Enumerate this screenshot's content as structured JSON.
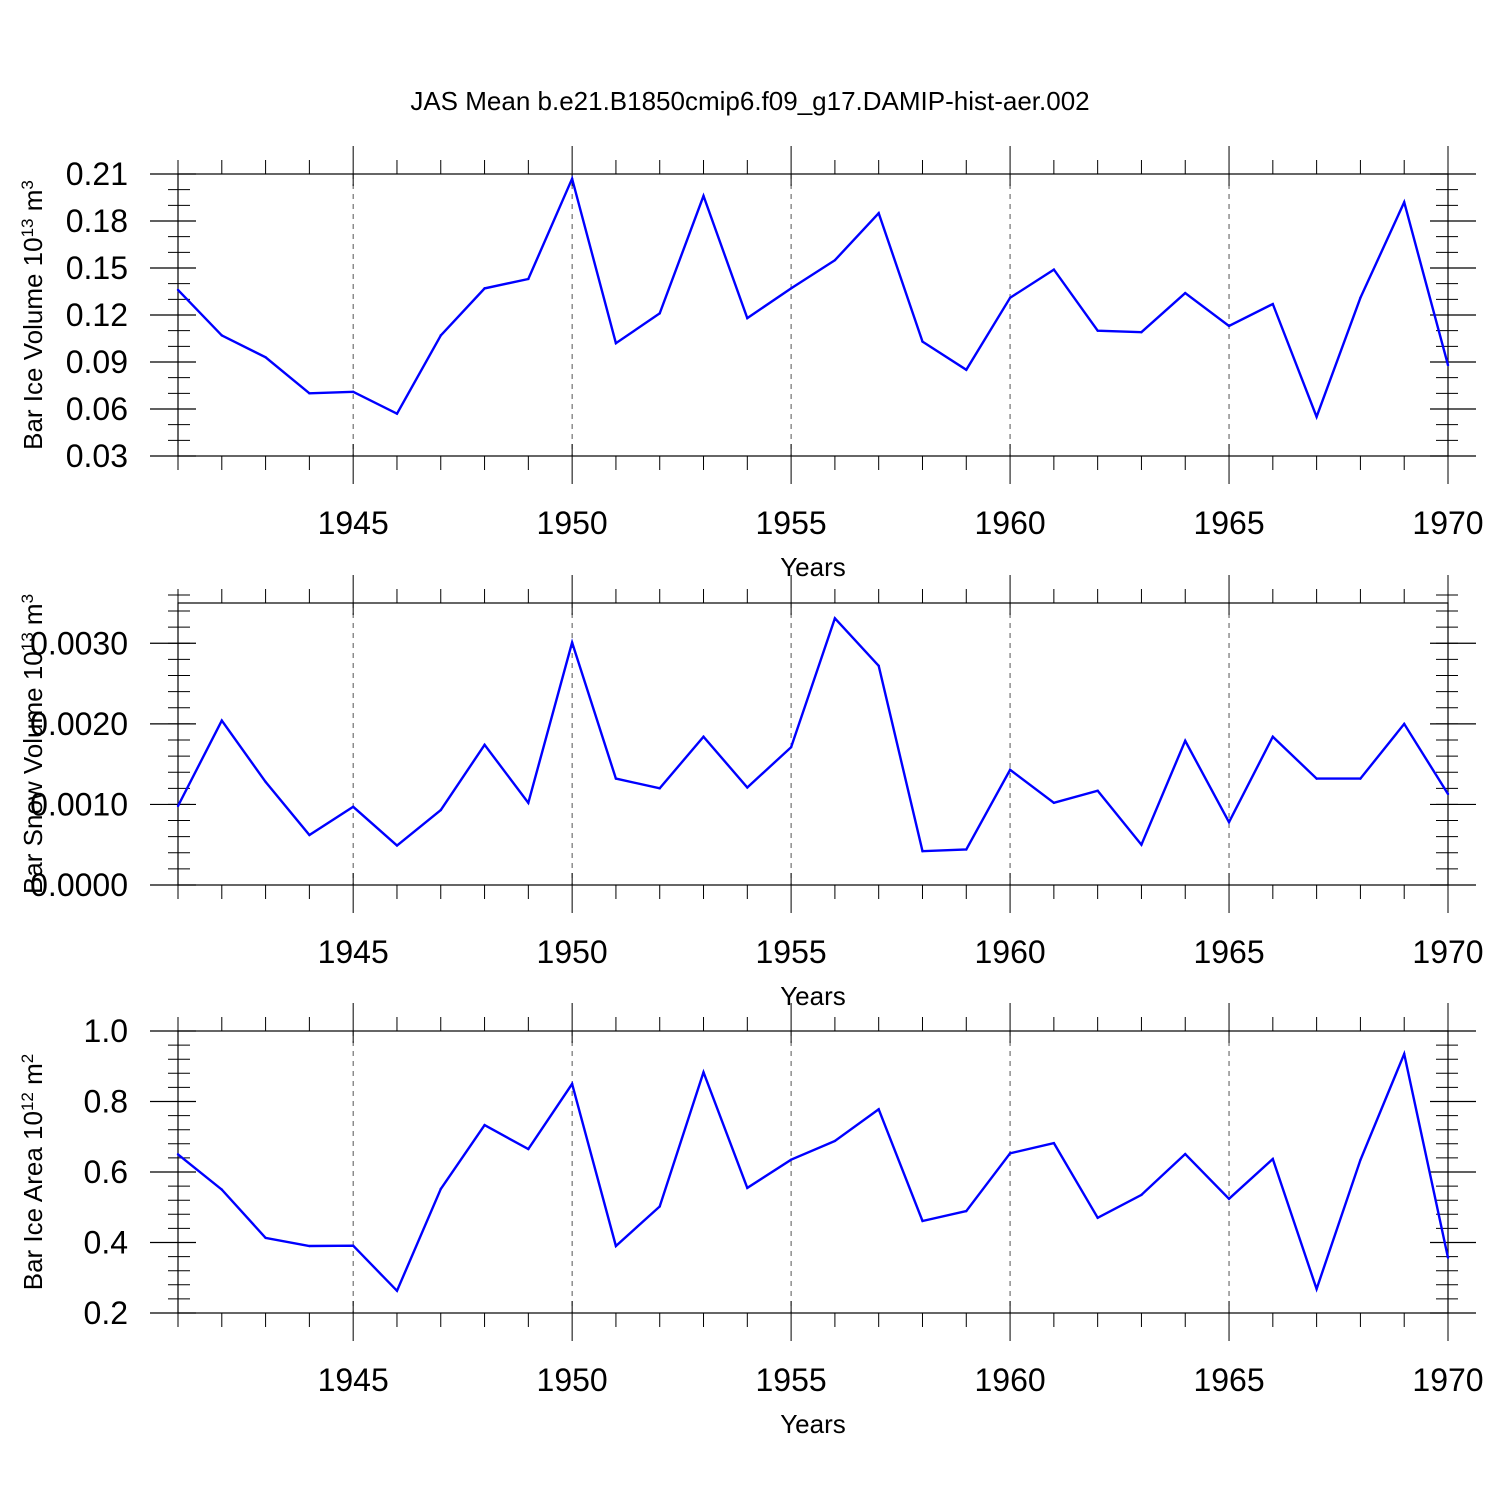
{
  "title": "JAS Mean b.e21.B1850cmip6.f09_g17.DAMIP-hist-aer.002",
  "colors": {
    "line": "#0000ff",
    "axis": "#000000",
    "grid": "#555555"
  },
  "chart_data": [
    {
      "type": "line",
      "ylabel": {
        "text": "Bar Ice Volume 10",
        "exp": "13",
        "unit": " m",
        "unit_exp": "3"
      },
      "xlabel": "Years",
      "xlim": [
        1941,
        1970
      ],
      "ylim": [
        0.03,
        0.21
      ],
      "yticks": [
        0.03,
        0.06,
        0.09,
        0.12,
        0.15,
        0.18,
        0.21
      ],
      "yticklabels": [
        "0.03",
        "0.06",
        "0.09",
        "0.12",
        "0.15",
        "0.18",
        "0.21"
      ],
      "yminor_step": 0.01,
      "xticks": [
        1945,
        1950,
        1955,
        1960,
        1965,
        1970
      ],
      "xticklabels": [
        "1945",
        "1950",
        "1955",
        "1960",
        "1965",
        "1970"
      ],
      "grid": "vertical-dashed",
      "x": [
        1941,
        1942,
        1943,
        1944,
        1945,
        1946,
        1947,
        1948,
        1949,
        1950,
        1951,
        1952,
        1953,
        1954,
        1955,
        1956,
        1957,
        1958,
        1959,
        1960,
        1961,
        1962,
        1963,
        1964,
        1965,
        1966,
        1967,
        1968,
        1969,
        1970
      ],
      "values": [
        0.136,
        0.107,
        0.093,
        0.07,
        0.071,
        0.057,
        0.107,
        0.137,
        0.143,
        0.207,
        0.102,
        0.121,
        0.196,
        0.118,
        0.137,
        0.155,
        0.185,
        0.103,
        0.085,
        0.131,
        0.149,
        0.11,
        0.109,
        0.134,
        0.113,
        0.127,
        0.055,
        0.131,
        0.192,
        0.088
      ]
    },
    {
      "type": "line",
      "ylabel": {
        "text": "Bar Snow Volume 10",
        "exp": "13",
        "unit": " m",
        "unit_exp": "3"
      },
      "xlabel": "Years",
      "xlim": [
        1941,
        1970
      ],
      "ylim": [
        0.0,
        0.0035
      ],
      "yticks": [
        0.0,
        0.001,
        0.002,
        0.003
      ],
      "yticklabels": [
        "0.0000",
        "0.0010",
        "0.0020",
        "0.0030"
      ],
      "yminor_step": 0.0002,
      "xticks": [
        1945,
        1950,
        1955,
        1960,
        1965,
        1970
      ],
      "xticklabels": [
        "1945",
        "1950",
        "1955",
        "1960",
        "1965",
        "1970"
      ],
      "grid": "vertical-dashed",
      "x": [
        1941,
        1942,
        1943,
        1944,
        1945,
        1946,
        1947,
        1948,
        1949,
        1950,
        1951,
        1952,
        1953,
        1954,
        1955,
        1956,
        1957,
        1958,
        1959,
        1960,
        1961,
        1962,
        1963,
        1964,
        1965,
        1966,
        1967,
        1968,
        1969,
        1970
      ],
      "values": [
        0.00098,
        0.00204,
        0.00128,
        0.00062,
        0.00097,
        0.00049,
        0.00093,
        0.00174,
        0.00102,
        0.00301,
        0.00132,
        0.0012,
        0.00184,
        0.00121,
        0.00171,
        0.00331,
        0.00272,
        0.00042,
        0.00044,
        0.00143,
        0.00102,
        0.00117,
        0.0005,
        0.00179,
        0.00078,
        0.00184,
        0.00132,
        0.00132,
        0.002,
        0.00113
      ]
    },
    {
      "type": "line",
      "ylabel": {
        "text": "Bar Ice Area 10",
        "exp": "12",
        "unit": " m",
        "unit_exp": "2"
      },
      "xlabel": "Years",
      "xlim": [
        1941,
        1970
      ],
      "ylim": [
        0.2,
        1.0
      ],
      "yticks": [
        0.2,
        0.4,
        0.6,
        0.8,
        1.0
      ],
      "yticklabels": [
        "0.2",
        "0.4",
        "0.6",
        "0.8",
        "1.0"
      ],
      "yminor_step": 0.04,
      "xticks": [
        1945,
        1950,
        1955,
        1960,
        1965,
        1970
      ],
      "xticklabels": [
        "1945",
        "1950",
        "1955",
        "1960",
        "1965",
        "1970"
      ],
      "grid": "vertical-dashed",
      "x": [
        1941,
        1942,
        1943,
        1944,
        1945,
        1946,
        1947,
        1948,
        1949,
        1950,
        1951,
        1952,
        1953,
        1954,
        1955,
        1956,
        1957,
        1958,
        1959,
        1960,
        1961,
        1962,
        1963,
        1964,
        1965,
        1966,
        1967,
        1968,
        1969,
        1970
      ],
      "values": [
        0.65,
        0.55,
        0.413,
        0.39,
        0.391,
        0.263,
        0.552,
        0.733,
        0.665,
        0.85,
        0.39,
        0.502,
        0.883,
        0.555,
        0.635,
        0.688,
        0.778,
        0.461,
        0.489,
        0.653,
        0.682,
        0.47,
        0.535,
        0.651,
        0.524,
        0.637,
        0.268,
        0.634,
        0.935,
        0.357
      ]
    }
  ]
}
